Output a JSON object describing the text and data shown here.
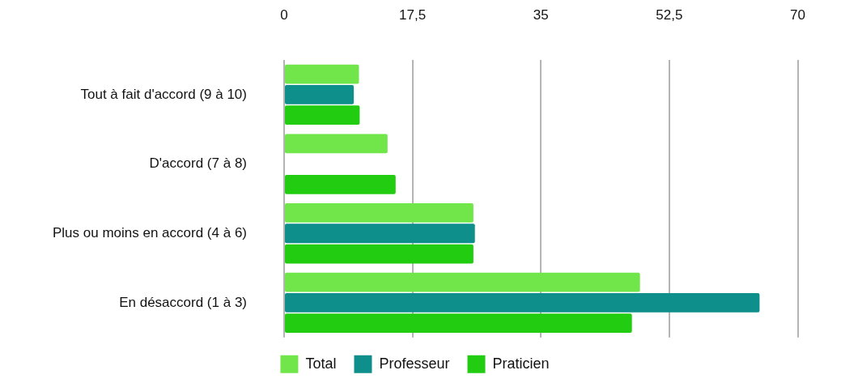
{
  "chart_data": {
    "type": "bar",
    "orientation": "horizontal",
    "categories": [
      "Tout à fait d'accord (9 à 10)",
      "D'accord (7 à 8)",
      "Plus ou moins en accord (4 à 6)",
      "En désaccord (1 à 3)"
    ],
    "series": [
      {
        "name": "Total",
        "color": "#70e64a",
        "values": [
          10.2,
          14.1,
          25.8,
          48.5
        ]
      },
      {
        "name": "Professeur",
        "color": "#0f8f8b",
        "values": [
          9.5,
          0,
          26.0,
          64.8
        ]
      },
      {
        "name": "Praticien",
        "color": "#22cc11",
        "values": [
          10.3,
          15.2,
          25.8,
          47.4
        ]
      }
    ],
    "xlim": [
      0,
      70
    ],
    "xticks": [
      0,
      {
        "value": 17.5,
        "label": "17,5"
      },
      35,
      {
        "value": 52.5,
        "label": "52,5"
      },
      70
    ],
    "grid": "x",
    "legend": "bottom"
  }
}
